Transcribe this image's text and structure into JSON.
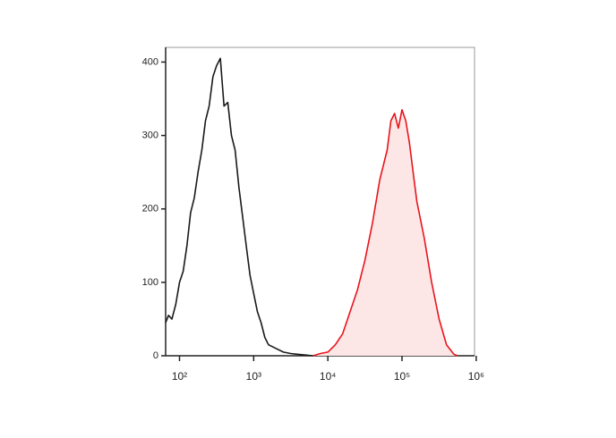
{
  "chart_data": {
    "type": "histogram-overlay",
    "xscale": "log",
    "xlim": [
      65,
      950000
    ],
    "ylim": [
      0,
      420
    ],
    "xticks": [
      {
        "value": 100,
        "label": "10²"
      },
      {
        "value": 1000,
        "label": "10³"
      },
      {
        "value": 10000,
        "label": "10⁴"
      },
      {
        "value": 100000,
        "label": "10⁵"
      },
      {
        "value": 1000000,
        "label": "10⁶"
      }
    ],
    "yticks": [
      0,
      100,
      200,
      300,
      400
    ],
    "series": [
      {
        "color": "#1a1a1a",
        "fill": null,
        "x": [
          65,
          71,
          79,
          89,
          100,
          112,
          126,
          141,
          158,
          178,
          200,
          224,
          251,
          282,
          316,
          355,
          398,
          447,
          501,
          562,
          631,
          708,
          794,
          891,
          1000,
          1122,
          1259,
          1413,
          1585,
          1995,
          2512,
          3162,
          3981,
          5012,
          6310
        ],
        "values": [
          45,
          55,
          50,
          70,
          100,
          115,
          150,
          195,
          215,
          250,
          280,
          320,
          340,
          380,
          395,
          405,
          340,
          345,
          300,
          280,
          230,
          190,
          150,
          110,
          85,
          60,
          45,
          25,
          15,
          10,
          5,
          3,
          2,
          1,
          0
        ]
      },
      {
        "color": "#e8141c",
        "fill": "#fde6e6",
        "x": [
          6310,
          7943,
          10000,
          12589,
          15849,
          19953,
          25119,
          31623,
          39811,
          50119,
          63096,
          70795,
          79433,
          89125,
          100000,
          112202,
          125893,
          141254,
          158489,
          199526,
          251189,
          316228,
          398107,
          501187,
          562341
        ],
        "values": [
          0,
          3,
          5,
          15,
          30,
          60,
          90,
          130,
          180,
          240,
          280,
          320,
          330,
          310,
          335,
          320,
          290,
          250,
          210,
          160,
          100,
          50,
          15,
          2,
          0
        ]
      }
    ]
  }
}
